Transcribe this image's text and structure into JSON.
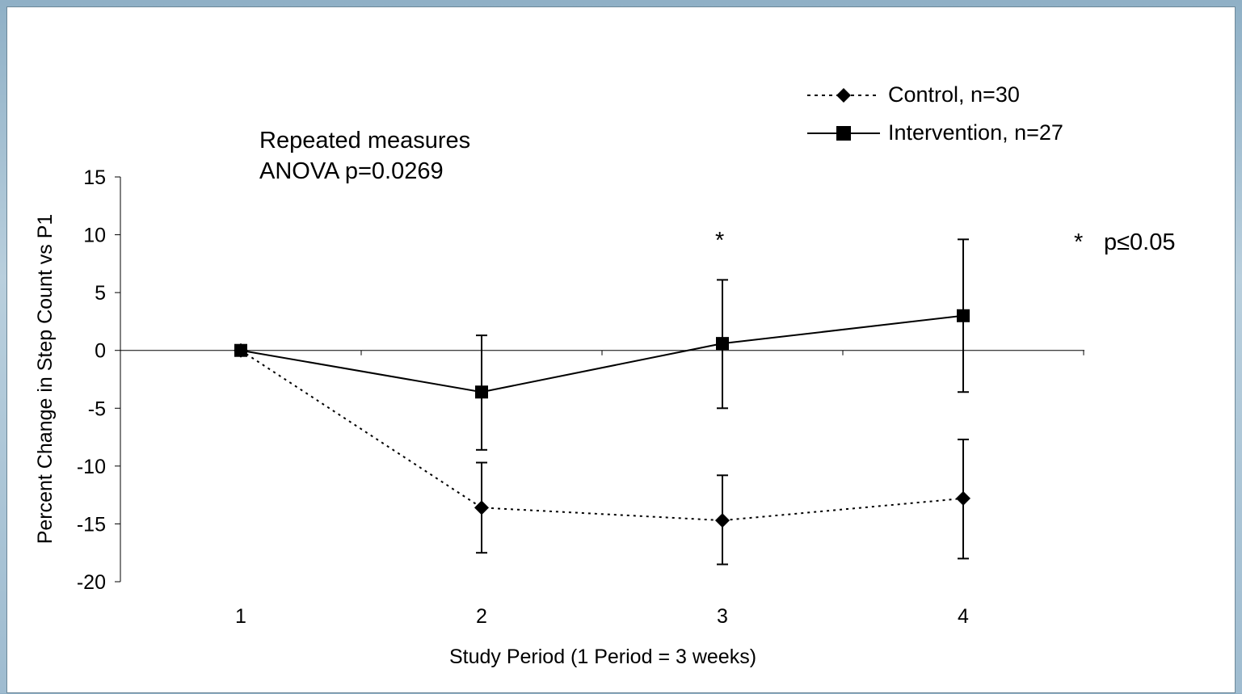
{
  "chart_data": {
    "type": "line",
    "xlabel": "Study Period (1 Period = 3 weeks)",
    "ylabel": "Percent Change in Step Count vs P1",
    "x": [
      1,
      2,
      3,
      4
    ],
    "xticks": [
      "1",
      "2",
      "3",
      "4"
    ],
    "ylim": [
      -20,
      15
    ],
    "yticks": [
      "15",
      "10",
      "5",
      "0",
      "-5",
      "-10",
      "-15",
      "-20"
    ],
    "series": [
      {
        "name": "Control, n=30",
        "values": [
          0,
          -13.6,
          -14.7,
          -12.8
        ],
        "error_low": [
          0,
          -17.5,
          -18.5,
          -18.0
        ],
        "error_high": [
          0,
          -9.7,
          -10.8,
          -7.7
        ],
        "line_style": "dotted",
        "marker": "diamond"
      },
      {
        "name": "Intervention, n=27",
        "values": [
          0,
          -3.6,
          0.6,
          3.0
        ],
        "error_low": [
          0,
          -8.6,
          -5.0,
          -3.6
        ],
        "error_high": [
          0,
          1.3,
          6.1,
          9.6
        ],
        "line_style": "solid",
        "marker": "square"
      }
    ],
    "annotations": {
      "anova_line1": "Repeated measures",
      "anova_line2": "ANOVA p=0.0269",
      "sig_marker": "*",
      "sig_legend_star": "*",
      "sig_legend_text": "p≤0.05"
    },
    "legend_placement": "top-right",
    "grid": false
  }
}
